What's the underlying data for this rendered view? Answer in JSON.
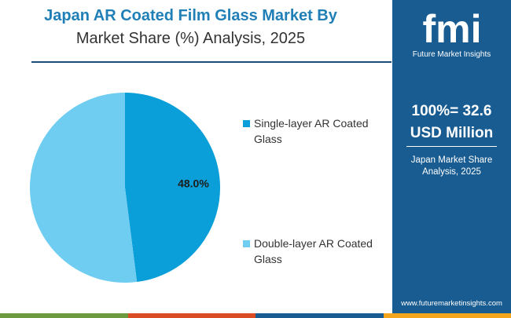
{
  "header": {
    "title_line1": "Japan AR Coated Film Glass Market By",
    "title_line2": "Market Share (%) Analysis, 2025"
  },
  "chart_data": {
    "type": "pie",
    "slices": [
      {
        "name": "Single-layer AR Coated Glass",
        "value": 48.0,
        "label": "48.0%",
        "color": "#0a9fd8"
      },
      {
        "name": "Double-layer AR Coated Glass",
        "value": 52.0,
        "label": "",
        "color": "#6fcdf2"
      }
    ],
    "legend_position": "right"
  },
  "legend": {
    "items": [
      {
        "line1": "Single-layer AR Coated",
        "line2": "Glass",
        "color": "#0a9fd8"
      },
      {
        "line1": "Double-layer AR Coated",
        "line2": "Glass",
        "color": "#6fcdf2"
      }
    ]
  },
  "side_panel": {
    "logo_text": "fmi",
    "logo_caption": "Future Market Insights",
    "total_line1": "100%= 32.6",
    "total_line2": "USD Million",
    "sub_line1": "Japan Market Share",
    "sub_line2": "Analysis, 2025",
    "website": "www.futuremarketinsights.com",
    "background_color": "#195c91"
  },
  "bottom_bar": {
    "colors": [
      "#6e9a3f",
      "#d94c24",
      "#195c91",
      "#f3a51e"
    ]
  }
}
